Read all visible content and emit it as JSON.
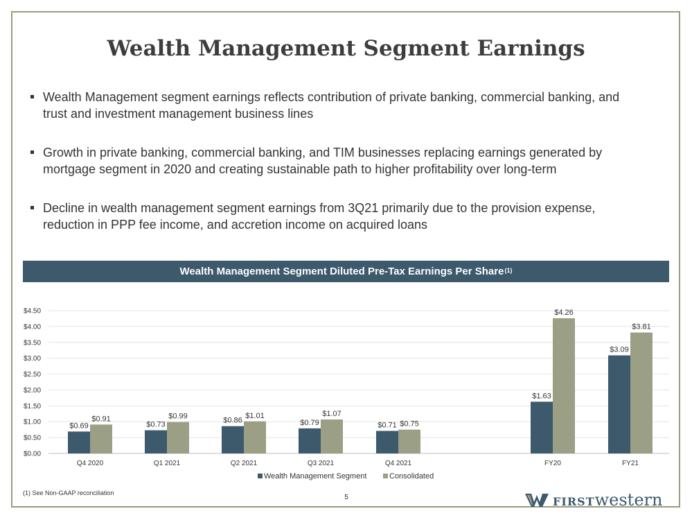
{
  "slide": {
    "title": "Wealth Management Segment Earnings",
    "bullets": [
      "Wealth Management segment earnings reflects contribution of private banking, commercial banking, and trust and investment management business lines",
      "Growth in private banking, commercial banking, and TIM businesses replacing earnings generated by mortgage segment in 2020 and creating sustainable path to higher profitability over long-term",
      "Decline in wealth management segment earnings from 3Q21 primarily due to the provision expense, reduction in PPP fee income, and accretion income on acquired loans"
    ],
    "banner_title": "Wealth Management Segment Diluted Pre-Tax Earnings Per Share",
    "banner_sup": "(1)",
    "footnote": "(1) See Non-GAAP reconciliation",
    "page_number": "5",
    "logo": {
      "caps": "FIRST",
      "lower": "western"
    }
  },
  "colors": {
    "banner": "#3d596c",
    "series_wm": "#3d596c",
    "series_consolidated": "#9a9f85",
    "frame": "#9a9b7f"
  },
  "chart_data": {
    "type": "bar",
    "categories": [
      "Q4 2020",
      "Q1 2021",
      "Q2 2021",
      "Q3 2021",
      "Q4 2021",
      "FY20",
      "FY21"
    ],
    "series": [
      {
        "name": "Wealth Management Segment",
        "values": [
          0.69,
          0.73,
          0.86,
          0.79,
          0.71,
          1.63,
          3.09
        ],
        "labels": [
          "$0.69",
          "$0.73",
          "$0.86",
          "$0.79",
          "$0.71",
          "$1.63",
          "$3.09"
        ]
      },
      {
        "name": "Consolidated",
        "values": [
          0.91,
          0.99,
          1.01,
          1.07,
          0.75,
          4.26,
          3.81
        ],
        "labels": [
          "$0.91",
          "$0.99",
          "$1.01",
          "$1.07",
          "$0.75",
          "$4.26",
          "$3.81"
        ]
      }
    ],
    "y_ticks": [
      "$0.00",
      "$0.50",
      "$1.00",
      "$1.50",
      "$2.00",
      "$2.50",
      "$3.00",
      "$3.50",
      "$4.00",
      "$4.50"
    ],
    "ylim": [
      0,
      4.5
    ],
    "grid": true,
    "legend_position": "bottom"
  }
}
